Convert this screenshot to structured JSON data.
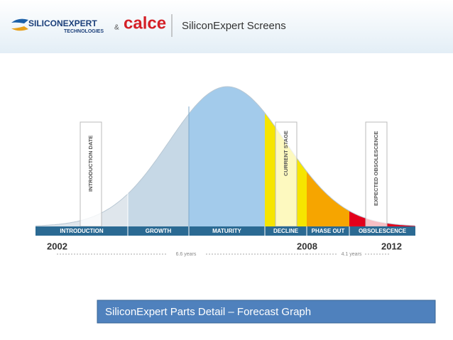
{
  "header": {
    "logo_main": "SILICONEXPERT",
    "logo_sub": "TECHNOLOGIES",
    "ampersand": "&",
    "partner": "calce",
    "title": "SiliconExpert Screens"
  },
  "diagram": {
    "stages": [
      "INTRODUCTION",
      "GROWTH",
      "MATURITY",
      "DECLINE",
      "PHASE OUT",
      "OBSOLESCENCE"
    ],
    "markers": [
      "INTRODUCTION DATE",
      "CURRENT STAGE",
      "EXPECTED OBSOLESCENCE"
    ],
    "years": [
      "2002",
      "2008",
      "2012"
    ],
    "spans": [
      "6.6 years",
      "4.1 years"
    ]
  },
  "caption": "SiliconExpert Parts Detail – Forecast Graph"
}
